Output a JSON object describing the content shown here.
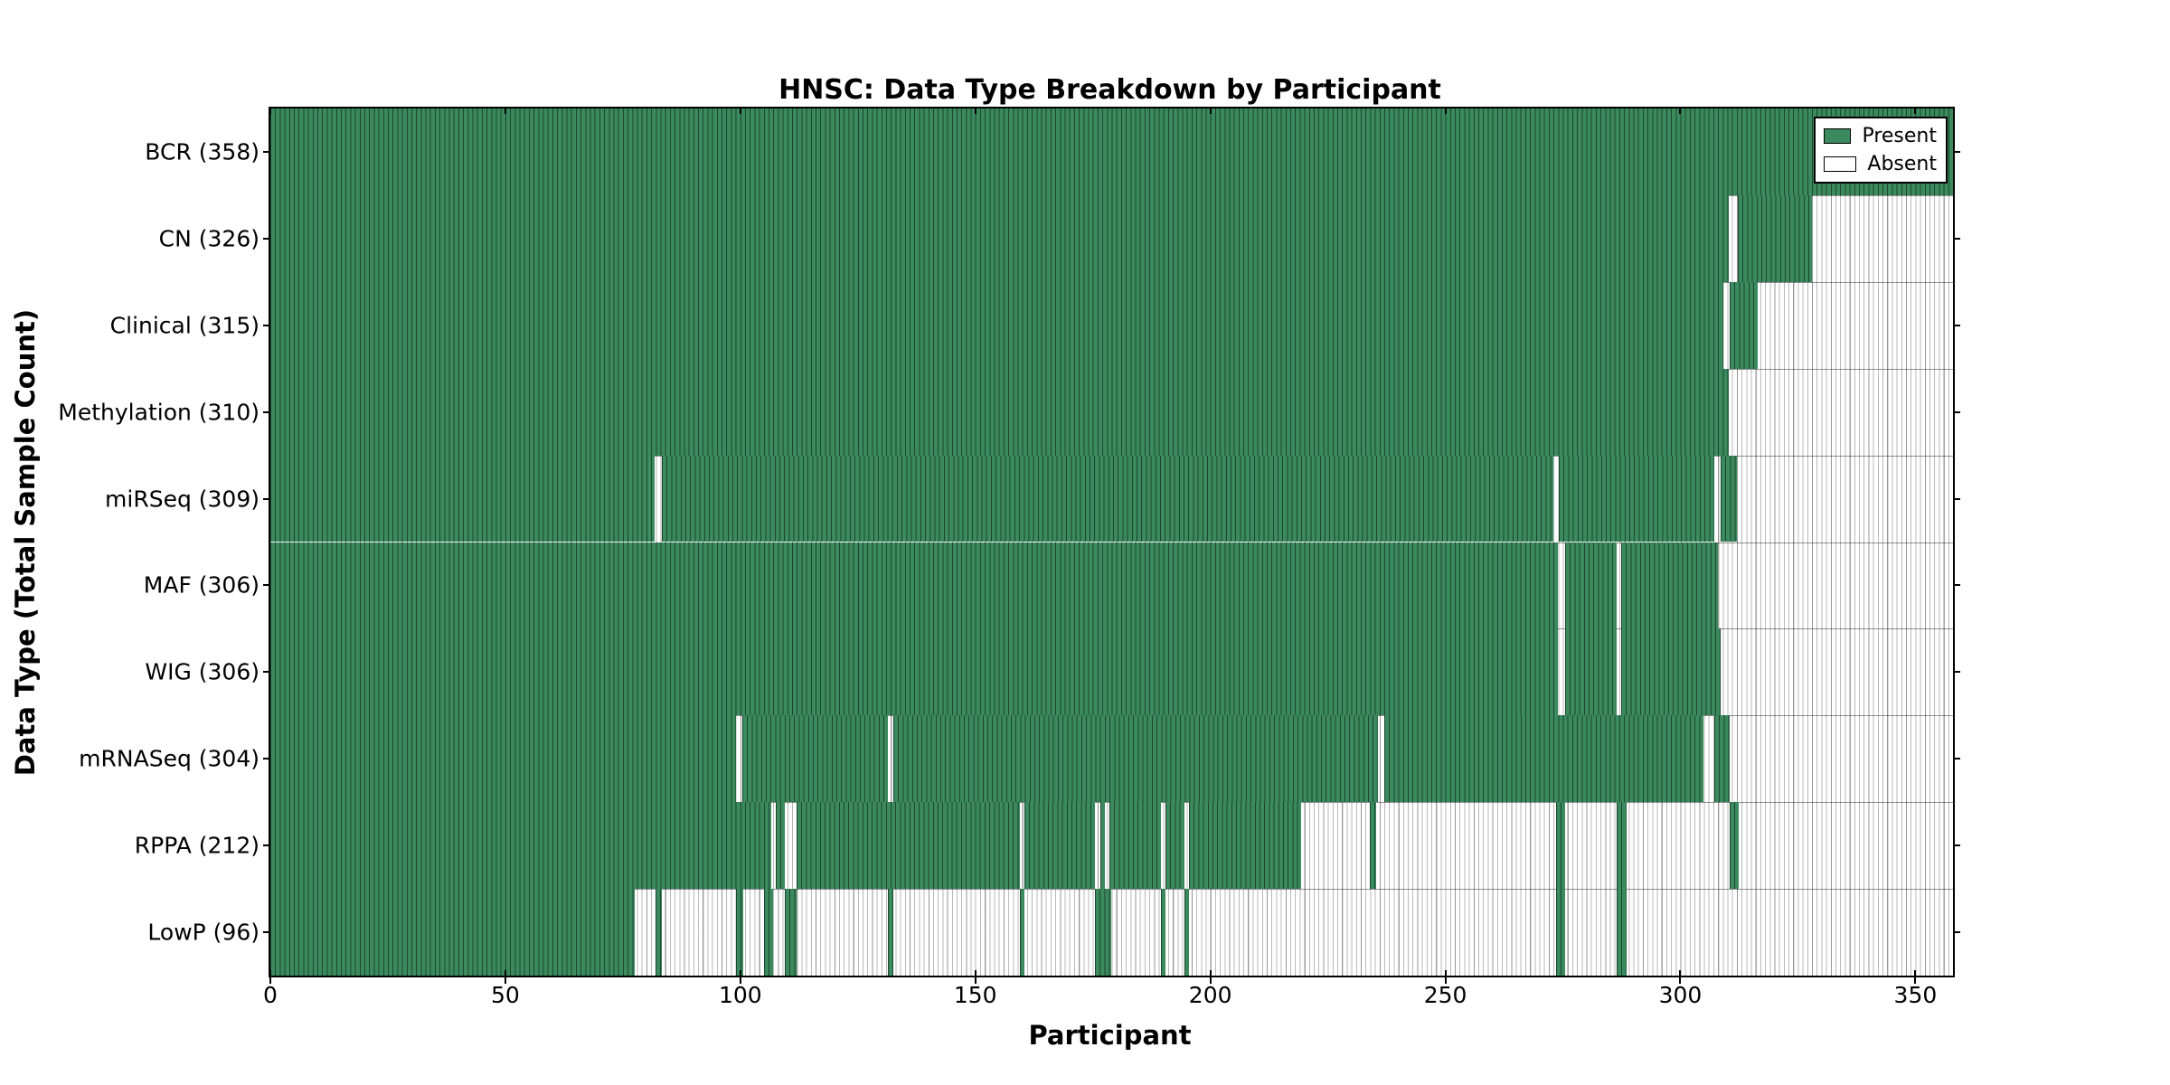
{
  "title": "HNSC: Data Type Breakdown by Participant",
  "xlabel": "Participant",
  "ylabel": "Data Type (Total Sample Count)",
  "legend": {
    "present_label": "Present",
    "absent_label": "Absent"
  },
  "colors": {
    "present_fill": "#3a8a5e",
    "present_edge": "#1e4630",
    "absent_fill": "#ffffff",
    "absent_edge": "#b9b9b9",
    "frame": "#000000"
  },
  "chart_data": {
    "type": "heatmap",
    "title": "HNSC: Data Type Breakdown by Participant",
    "xlabel": "Participant",
    "ylabel": "Data Type (Total Sample Count)",
    "legend_entries": [
      "Present",
      "Absent"
    ],
    "legend_position": "upper right",
    "x_axis": {
      "min": 0,
      "max": 358,
      "ticks": [
        0,
        50,
        100,
        150,
        200,
        250,
        300,
        350
      ]
    },
    "grid": false,
    "categories": [
      "BCR (358)",
      "CN (326)",
      "Clinical (315)",
      "Methylation (310)",
      "miRSeq (309)",
      "MAF (306)",
      "WIG (306)",
      "mRNASeq (304)",
      "RPPA (212)",
      "LowP (96)"
    ],
    "rows": [
      {
        "label": "BCR (358)",
        "data_type": "BCR",
        "total": 358,
        "present_ranges": [
          [
            0,
            358
          ]
        ]
      },
      {
        "label": "CN (326)",
        "data_type": "CN",
        "total": 326,
        "present_ranges": [
          [
            0,
            310.3
          ],
          [
            312.2,
            327.9
          ]
        ]
      },
      {
        "label": "Clinical (315)",
        "data_type": "Clinical",
        "total": 315,
        "present_ranges": [
          [
            0,
            309.2
          ],
          [
            310.4,
            316.4
          ]
        ]
      },
      {
        "label": "Methylation (310)",
        "data_type": "Methylation",
        "total": 310,
        "present_ranges": [
          [
            0,
            310.2
          ]
        ]
      },
      {
        "label": "miRSeq (309)",
        "data_type": "miRSeq",
        "total": 309,
        "present_ranges": [
          [
            0,
            81.8
          ],
          [
            83.2,
            273
          ],
          [
            274.1,
            307.3
          ],
          [
            308.5,
            312
          ]
        ]
      },
      {
        "label": "MAF (306)",
        "data_type": "MAF",
        "total": 306,
        "present_ranges": [
          [
            0,
            274
          ],
          [
            275.5,
            286.4
          ],
          [
            287.4,
            308
          ]
        ]
      },
      {
        "label": "WIG (306)",
        "data_type": "WIG",
        "total": 306,
        "present_ranges": [
          [
            0,
            274
          ],
          [
            275.5,
            286.4
          ],
          [
            287.4,
            308.5
          ]
        ]
      },
      {
        "label": "mRNASeq (304)",
        "data_type": "mRNASeq",
        "total": 304,
        "present_ranges": [
          [
            0,
            99
          ],
          [
            100.5,
            131.4
          ],
          [
            132.5,
            235.6
          ],
          [
            237,
            305
          ],
          [
            307.3,
            310.4
          ]
        ]
      },
      {
        "label": "RPPA (212)",
        "data_type": "RPPA",
        "total": 212,
        "present_ranges": [
          [
            0,
            106.5
          ],
          [
            107.5,
            109.5
          ],
          [
            112,
            159.5
          ],
          [
            160.5,
            175.5
          ],
          [
            176.5,
            177.5
          ],
          [
            178.5,
            189.5
          ],
          [
            190.5,
            194.5
          ],
          [
            195.5,
            219.3
          ],
          [
            234,
            235.3
          ],
          [
            273.5,
            275.5
          ],
          [
            286.5,
            288.5
          ],
          [
            310.5,
            312.5
          ]
        ]
      },
      {
        "label": "LowP (96)",
        "data_type": "LowP",
        "total": 96,
        "present_ranges": [
          [
            0,
            77.5
          ],
          [
            82,
            83.3
          ],
          [
            99,
            100.6
          ],
          [
            105,
            107
          ],
          [
            109.5,
            112
          ],
          [
            131.4,
            132.6
          ],
          [
            159.5,
            160.5
          ],
          [
            175.5,
            179
          ],
          [
            189.5,
            190.5
          ],
          [
            194.5,
            195.5
          ],
          [
            273.5,
            275.5
          ],
          [
            286.5,
            288.5
          ]
        ]
      }
    ]
  }
}
